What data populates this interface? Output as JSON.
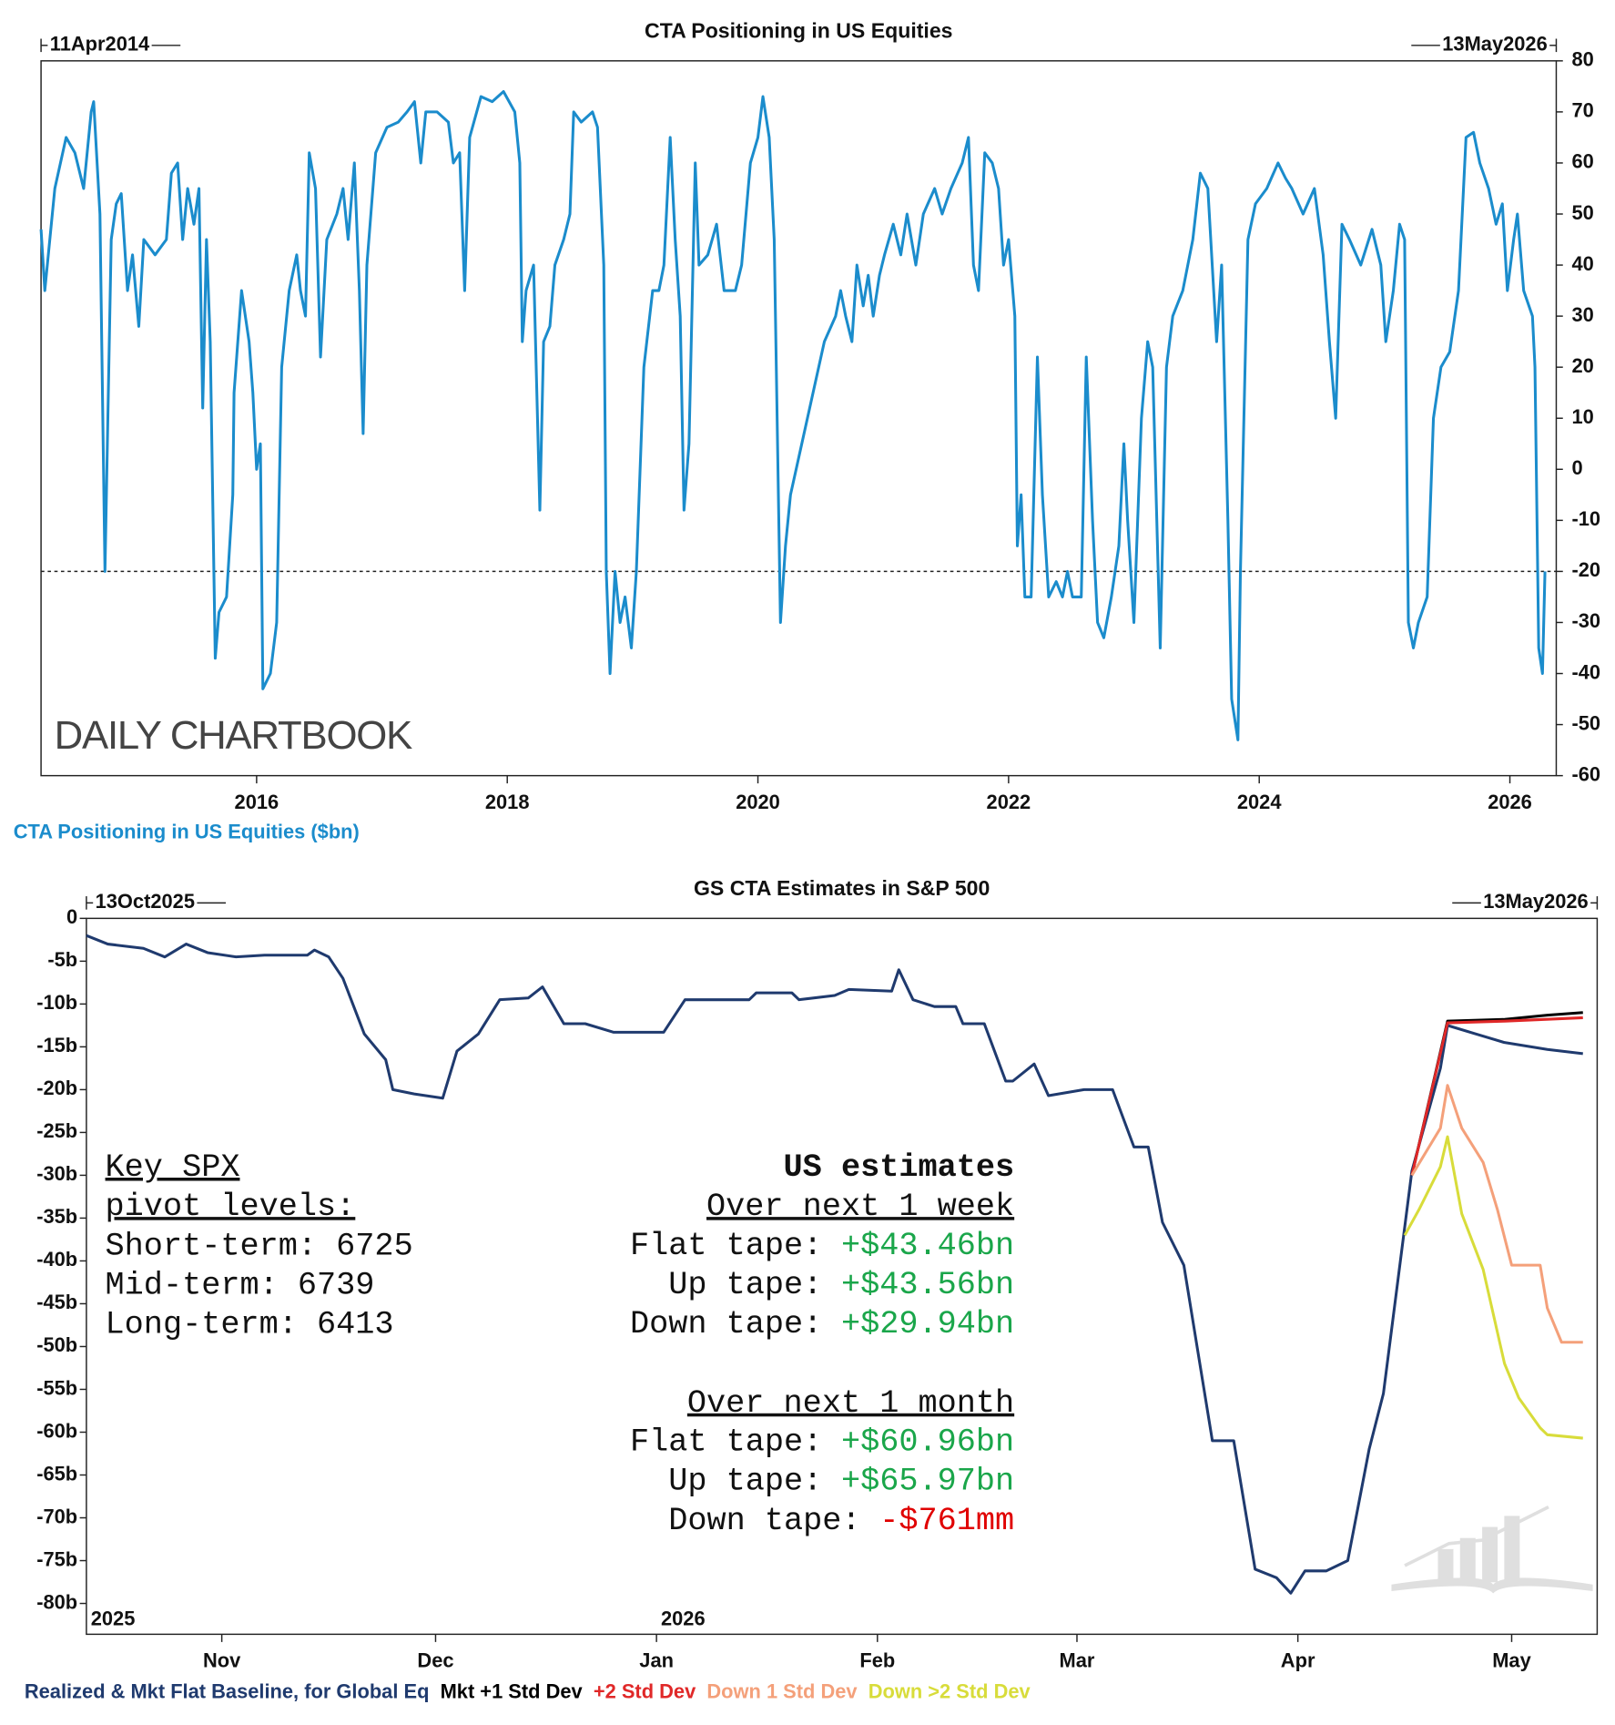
{
  "chart_data": [
    {
      "type": "line",
      "title": "CTA Positioning in US Equities",
      "start_label": "11Apr2014",
      "end_label": "13May2026",
      "watermark": "DAILY CHARTBOOK",
      "x": [
        2014.28,
        2014.31,
        2014.39,
        2014.48,
        2014.55,
        2014.62,
        2014.68,
        2014.7,
        2014.75,
        2014.79,
        2014.84,
        2014.88,
        2014.92,
        2014.97,
        2015.01,
        2015.06,
        2015.1,
        2015.19,
        2015.28,
        2015.32,
        2015.37,
        2015.41,
        2015.45,
        2015.5,
        2015.54,
        2015.57,
        2015.6,
        2015.63,
        2015.67,
        2015.7,
        2015.76,
        2015.81,
        2015.82,
        2015.88,
        2015.94,
        2015.97,
        2016.0,
        2016.03,
        2016.05,
        2016.11,
        2016.16,
        2016.2,
        2016.26,
        2016.32,
        2016.35,
        2016.39,
        2016.42,
        2016.47,
        2016.51,
        2016.56,
        2016.64,
        2016.69,
        2016.73,
        2016.78,
        2016.82,
        2016.85,
        2016.88,
        2016.95,
        2017.04,
        2017.13,
        2017.2,
        2017.26,
        2017.31,
        2017.35,
        2017.44,
        2017.53,
        2017.57,
        2017.62,
        2017.66,
        2017.7,
        2017.79,
        2017.88,
        2017.97,
        2018.06,
        2018.1,
        2018.12,
        2018.15,
        2018.21,
        2018.26,
        2018.29,
        2018.34,
        2018.38,
        2018.45,
        2018.5,
        2018.53,
        2018.59,
        2018.68,
        2018.72,
        2018.77,
        2018.79,
        2018.82,
        2018.86,
        2018.9,
        2018.94,
        2018.99,
        2019.03,
        2019.09,
        2019.16,
        2019.21,
        2019.25,
        2019.3,
        2019.34,
        2019.38,
        2019.41,
        2019.45,
        2019.5,
        2019.53,
        2019.6,
        2019.67,
        2019.73,
        2019.82,
        2019.87,
        2019.94,
        2020.0,
        2020.04,
        2020.09,
        2020.13,
        2020.16,
        2020.18,
        2020.22,
        2020.26,
        2020.35,
        2020.44,
        2020.53,
        2020.62,
        2020.66,
        2020.7,
        2020.75,
        2020.79,
        2020.84,
        2020.88,
        2020.92,
        2020.97,
        2021.01,
        2021.08,
        2021.14,
        2021.19,
        2021.26,
        2021.32,
        2021.41,
        2021.47,
        2021.54,
        2021.63,
        2021.68,
        2021.72,
        2021.76,
        2021.81,
        2021.87,
        2021.92,
        2021.96,
        2022.0,
        2022.05,
        2022.07,
        2022.1,
        2022.13,
        2022.18,
        2022.23,
        2022.27,
        2022.32,
        2022.38,
        2022.43,
        2022.47,
        2022.51,
        2022.58,
        2022.62,
        2022.67,
        2022.71,
        2022.76,
        2022.82,
        2022.88,
        2022.92,
        2022.95,
        2023.0,
        2023.06,
        2023.11,
        2023.15,
        2023.21,
        2023.26,
        2023.31,
        2023.39,
        2023.47,
        2023.53,
        2023.59,
        2023.66,
        2023.7,
        2023.75,
        2023.78,
        2023.83,
        2023.85,
        2023.91,
        2023.97,
        2024.06,
        2024.15,
        2024.21,
        2024.26,
        2024.35,
        2024.44,
        2024.51,
        2024.56,
        2024.61,
        2024.66,
        2024.72,
        2024.81,
        2024.9,
        2024.97,
        2025.01,
        2025.07,
        2025.12,
        2025.16,
        2025.19,
        2025.23,
        2025.27,
        2025.34,
        2025.39,
        2025.45,
        2025.52,
        2025.59,
        2025.65,
        2025.71,
        2025.76,
        2025.83,
        2025.89,
        2025.94,
        2025.98,
        2026.03,
        2026.06,
        2026.11,
        2026.18,
        2026.2,
        2026.23,
        2026.26,
        2026.28
      ],
      "series": [
        {
          "name": "CTA Positioning in US Equities ($bn)",
          "color": "#1b8ccc",
          "values": [
            47,
            35,
            55,
            65,
            62,
            55,
            70,
            72,
            50,
            -20,
            45,
            52,
            54,
            35,
            42,
            28,
            45,
            42,
            45,
            58,
            60,
            45,
            55,
            48,
            55,
            12,
            45,
            25,
            -37,
            -28,
            -25,
            -5,
            15,
            35,
            25,
            15,
            0,
            5,
            -43,
            -40,
            -30,
            20,
            35,
            42,
            35,
            30,
            62,
            55,
            22,
            45,
            50,
            55,
            45,
            60,
            35,
            7,
            40,
            62,
            67,
            68,
            70,
            72,
            60,
            70,
            70,
            68,
            60,
            62,
            35,
            65,
            73,
            72,
            74,
            70,
            60,
            25,
            35,
            40,
            -8,
            25,
            28,
            40,
            45,
            50,
            70,
            68,
            70,
            67,
            40,
            -20,
            -40,
            -20,
            -30,
            -25,
            -35,
            -20,
            20,
            35,
            35,
            40,
            65,
            45,
            30,
            -8,
            5,
            60,
            40,
            42,
            48,
            35,
            35,
            40,
            60,
            65,
            73,
            65,
            45,
            0,
            -30,
            -15,
            -5,
            5,
            15,
            25,
            30,
            35,
            30,
            25,
            40,
            32,
            38,
            30,
            38,
            42,
            48,
            42,
            50,
            40,
            50,
            55,
            50,
            55,
            60,
            65,
            40,
            35,
            62,
            60,
            55,
            40,
            45,
            30,
            -15,
            -5,
            -25,
            -25,
            22,
            -5,
            -25,
            -22,
            -25,
            -20,
            -25,
            -25,
            22,
            -10,
            -30,
            -33,
            -25,
            -15,
            5,
            -10,
            -30,
            10,
            25,
            20,
            -35,
            20,
            30,
            35,
            45,
            58,
            55,
            25,
            40,
            -10,
            -45,
            -53,
            -20,
            45,
            52,
            55,
            60,
            57,
            55,
            50,
            55,
            42,
            25,
            10,
            48,
            45,
            40,
            47,
            40,
            25,
            35,
            48,
            45,
            -30,
            -35,
            -30,
            -25,
            10,
            20,
            23,
            35,
            65,
            66,
            60,
            55,
            48,
            52,
            35,
            45,
            50,
            35,
            30,
            20,
            -35,
            -40,
            -20
          ]
        }
      ],
      "xlim": [
        2014.28,
        2026.37
      ],
      "xticks": [
        2016,
        2018,
        2020,
        2022,
        2024,
        2026
      ],
      "ylim": [
        -60,
        80
      ],
      "yticks": [
        80,
        70,
        60,
        50,
        40,
        30,
        20,
        10,
        0,
        -10,
        -20,
        -30,
        -40,
        -50,
        -60
      ],
      "y_axis_side": "right",
      "reference_line": -20,
      "legend": "bottom-left"
    },
    {
      "type": "line",
      "title": "GS CTA Estimates in S&P 500",
      "start_label": "13Oct2025",
      "end_label": "13May2026",
      "series": [
        {
          "name": "Realized & Mkt Flat Baseline, for Global Eq",
          "color": "#1f3a6e",
          "x": [
            "2025-10-13",
            "2025-10-16",
            "2025-10-21",
            "2025-10-24",
            "2025-10-27",
            "2025-10-30",
            "2025-11-03",
            "2025-11-07",
            "2025-11-13",
            "2025-11-14",
            "2025-11-16",
            "2025-11-18",
            "2025-11-21",
            "2025-11-24",
            "2025-11-25",
            "2025-11-28",
            "2025-12-02",
            "2025-12-04",
            "2025-12-07",
            "2025-12-10",
            "2025-12-14",
            "2025-12-16",
            "2025-12-19",
            "2025-12-22",
            "2025-12-26",
            "2026-01-02",
            "2026-01-05",
            "2026-01-14",
            "2026-01-15",
            "2026-01-20",
            "2026-01-21",
            "2026-01-26",
            "2026-01-28",
            "2026-02-03",
            "2026-02-04",
            "2026-02-06",
            "2026-02-09",
            "2026-02-12",
            "2026-02-13",
            "2026-02-16",
            "2026-02-19",
            "2026-02-20",
            "2026-02-23",
            "2026-02-25",
            "2026-03-02",
            "2026-03-06",
            "2026-03-09",
            "2026-03-11",
            "2026-03-13",
            "2026-03-16",
            "2026-03-20",
            "2026-03-23",
            "2026-03-26",
            "2026-03-29",
            "2026-03-31",
            "2026-04-02",
            "2026-04-05",
            "2026-04-08",
            "2026-04-11",
            "2026-04-13",
            "2026-04-17",
            "2026-04-21",
            "2026-04-22",
            "2026-04-26",
            "2026-04-30",
            "2026-05-06",
            "2026-05-11"
          ],
          "values": [
            -2,
            -3,
            -3.5,
            -4.5,
            -3,
            -4,
            -4.5,
            -4.3,
            -4.3,
            -3.7,
            -4.5,
            -7,
            -13.5,
            -16.5,
            -20,
            -20.5,
            -21,
            -15.5,
            -13.5,
            -9.5,
            -9.3,
            -8,
            -12.3,
            -12.3,
            -13.3,
            -13.3,
            -9.5,
            -9.5,
            -8.7,
            -8.7,
            -9.5,
            -9,
            -8.3,
            -8.5,
            -6,
            -9.5,
            -10.3,
            -10.3,
            -12.3,
            -12.3,
            -19,
            -19,
            -17,
            -20.7,
            -20,
            -20,
            -26.7,
            -26.7,
            -35.5,
            -40.5,
            -61,
            -61,
            -76,
            -77,
            -78.8,
            -76.2,
            -76.2,
            -75,
            -62,
            -55.5,
            -29.5,
            -17.5,
            -12.5,
            -13.5,
            -14.5,
            -15.3,
            -15.8
          ]
        },
        {
          "name": "Mkt +1 Std Dev",
          "color": "#000000",
          "x": [
            "2026-04-17",
            "2026-04-22",
            "2026-04-30",
            "2026-05-06",
            "2026-05-11"
          ],
          "values": [
            -30,
            -12,
            -11.8,
            -11.3,
            -11
          ]
        },
        {
          "name": "+2 Std Dev",
          "color": "#e02828",
          "x": [
            "2026-04-17",
            "2026-04-22",
            "2026-04-30",
            "2026-05-11"
          ],
          "values": [
            -30,
            -12.2,
            -12,
            -11.6
          ]
        },
        {
          "name": "Down 1 Std Dev",
          "color": "#f4a07a",
          "x": [
            "2026-04-17",
            "2026-04-21",
            "2026-04-22",
            "2026-04-24",
            "2026-04-27",
            "2026-04-29",
            "2026-05-01",
            "2026-05-05",
            "2026-05-06",
            "2026-05-08",
            "2026-05-11"
          ],
          "values": [
            -30,
            -24.5,
            -19.5,
            -24.5,
            -28.5,
            -34,
            -40.5,
            -40.5,
            -45.5,
            -49.5,
            -49.5
          ]
        },
        {
          "name": "Down >2 Std Dev",
          "color": "#d8dc3a",
          "x": [
            "2026-04-16",
            "2026-04-18",
            "2026-04-21",
            "2026-04-22",
            "2026-04-24",
            "2026-04-27",
            "2026-04-30",
            "2026-05-02",
            "2026-05-05",
            "2026-05-06",
            "2026-05-11"
          ],
          "values": [
            -37,
            -34,
            -29,
            -25.5,
            -34.5,
            -41,
            -52,
            -56,
            -59.5,
            -60.3,
            -60.7
          ]
        }
      ],
      "xlim": [
        "2025-10-13",
        "2026-05-13"
      ],
      "xticks": [
        {
          "value": "2025-11-01",
          "label": "Nov"
        },
        {
          "value": "2025-12-01",
          "label": "Dec"
        },
        {
          "value": "2026-01-01",
          "label": "Jan"
        },
        {
          "value": "2026-02-01",
          "label": "Feb"
        },
        {
          "value": "2026-03-01",
          "label": "Mar"
        },
        {
          "value": "2026-04-01",
          "label": "Apr"
        },
        {
          "value": "2026-05-01",
          "label": "May"
        }
      ],
      "ylim": [
        -83.6,
        0
      ],
      "yticks": [
        0,
        {
          "value": -5,
          "label": "-5b"
        },
        {
          "value": -10,
          "label": "-10b"
        },
        {
          "value": -15,
          "label": "-15b"
        },
        {
          "value": -20,
          "label": "-20b"
        },
        {
          "value": -25,
          "label": "-25b"
        },
        {
          "value": -30,
          "label": "-30b"
        },
        {
          "value": -35,
          "label": "-35b"
        },
        {
          "value": -40,
          "label": "-40b"
        },
        {
          "value": -45,
          "label": "-45b"
        },
        {
          "value": -50,
          "label": "-50b"
        },
        {
          "value": -55,
          "label": "-55b"
        },
        {
          "value": -60,
          "label": "-60b"
        },
        {
          "value": -65,
          "label": "-65b"
        },
        {
          "value": -70,
          "label": "-70b"
        },
        {
          "value": -75,
          "label": "-75b"
        },
        {
          "value": -80,
          "label": "-80b"
        }
      ],
      "y_axis_side": "left",
      "legend": "bottom-left",
      "annotations": [
        {
          "text": "2025",
          "x": "2025-10-13"
        },
        {
          "text": "2026",
          "x": "2026-01-01"
        }
      ],
      "key_levels": {
        "heading": [
          "Key SPX",
          "pivot levels:"
        ],
        "lines": [
          "Short-term: 6725",
          "Mid-term: 6739",
          "Long-term: 6413"
        ]
      },
      "estimates": {
        "title": "US estimates",
        "blocks": [
          {
            "heading": "Over next 1 week",
            "rows": [
              {
                "label": "Flat tape:",
                "value": "+$43.46bn",
                "color": "#1aa64a"
              },
              {
                "label": "Up tape:",
                "value": "+$43.56bn",
                "color": "#1aa64a"
              },
              {
                "label": "Down tape:",
                "value": "+$29.94bn",
                "color": "#1aa64a"
              }
            ]
          },
          {
            "heading": "Over next 1 month",
            "rows": [
              {
                "label": "Flat tape:",
                "value": "+$60.96bn",
                "color": "#1aa64a"
              },
              {
                "label": "Up tape:",
                "value": "+$65.97bn",
                "color": "#1aa64a"
              },
              {
                "label": "Down tape:",
                "value": "-$761mm",
                "color": "#e00000"
              }
            ]
          }
        ]
      }
    }
  ]
}
